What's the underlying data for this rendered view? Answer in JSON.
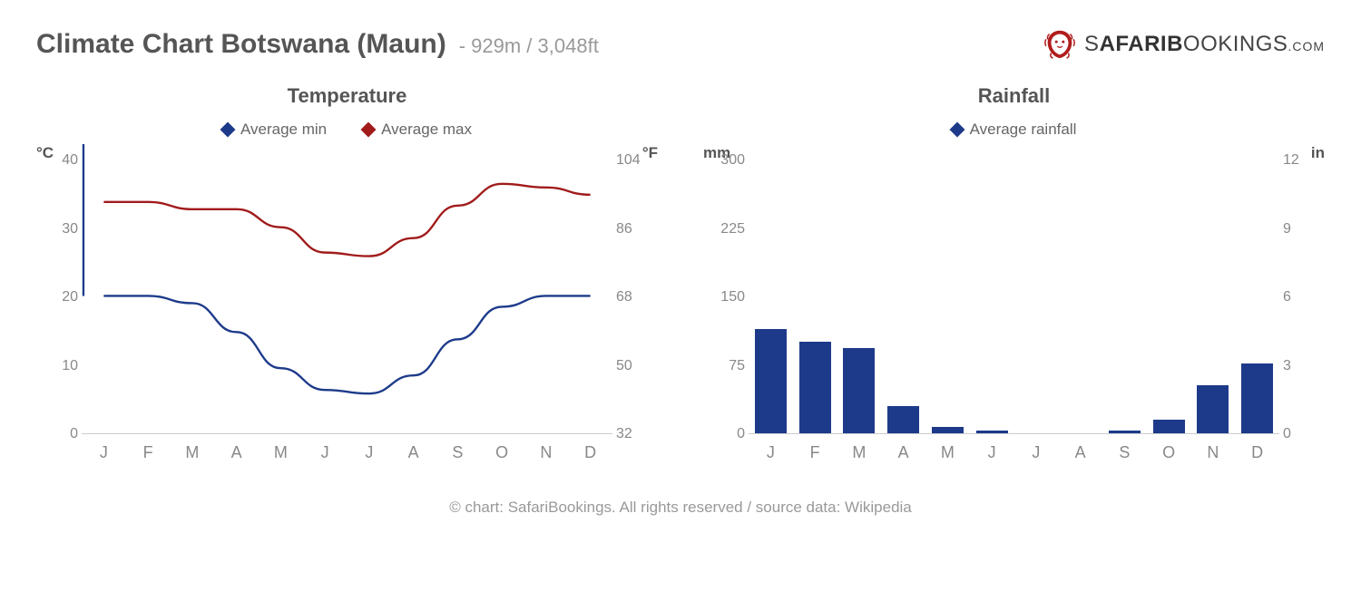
{
  "header": {
    "title": "Climate Chart Botswana (Maun)",
    "subtitle": "- 929m / 3,048ft",
    "logo": {
      "brand_part1": "S",
      "brand_part2": "AFARI",
      "brand_part3": "B",
      "brand_part4": "OOKINGS",
      "brand_part5": ".COM",
      "icon_color": "#b01d1d"
    }
  },
  "colors": {
    "min_line": "#1d3a8a",
    "max_line": "#a11b1b",
    "bar_fill": "#1d3a8a",
    "axis_text": "#888888",
    "title_text": "#555555",
    "grid_line": "#cccccc",
    "background": "#ffffff"
  },
  "months": [
    "J",
    "F",
    "M",
    "A",
    "M",
    "J",
    "J",
    "A",
    "S",
    "O",
    "N",
    "D"
  ],
  "temperature_chart": {
    "type": "line",
    "title": "Temperature",
    "legend": [
      {
        "label": "Average min",
        "color": "#1d3a8a"
      },
      {
        "label": "Average max",
        "color": "#a11b1b"
      }
    ],
    "left_axis": {
      "unit": "°C",
      "min": 0,
      "max": 40,
      "ticks": [
        0,
        10,
        20,
        30,
        40
      ]
    },
    "right_axis": {
      "unit": "°F",
      "min": 32,
      "max": 104,
      "ticks": [
        32,
        50,
        68,
        86,
        104
      ]
    },
    "series": {
      "avg_min_c": [
        19,
        19,
        18,
        14,
        9,
        6,
        5.5,
        8,
        13,
        17.5,
        19,
        19
      ],
      "avg_max_c": [
        32,
        32,
        31,
        31,
        28.5,
        25,
        24.5,
        27,
        31.5,
        34.5,
        34,
        33
      ]
    },
    "line_width": 2.4,
    "spike": {
      "x_index": 0,
      "from_c": 42,
      "to_c": 19,
      "color": "#1d3a8a"
    },
    "title_fontsize": 22,
    "label_fontsize": 17
  },
  "rainfall_chart": {
    "type": "bar",
    "title": "Rainfall",
    "legend": [
      {
        "label": "Average rainfall",
        "color": "#1d3a8a"
      }
    ],
    "left_axis": {
      "unit": "mm",
      "min": 0,
      "max": 300,
      "ticks": [
        0,
        75,
        150,
        225,
        300
      ]
    },
    "right_axis": {
      "unit": "in",
      "min": 0,
      "max": 12,
      "ticks": [
        0,
        3,
        6,
        9,
        12
      ]
    },
    "values_mm": [
      108,
      95,
      88,
      28,
      7,
      3,
      0,
      0,
      3,
      14,
      50,
      72
    ],
    "bar_color": "#1d3a8a",
    "bar_width_ratio": 0.72,
    "title_fontsize": 22,
    "label_fontsize": 17
  },
  "footer": "© chart: SafariBookings. All rights reserved / source data: Wikipedia"
}
